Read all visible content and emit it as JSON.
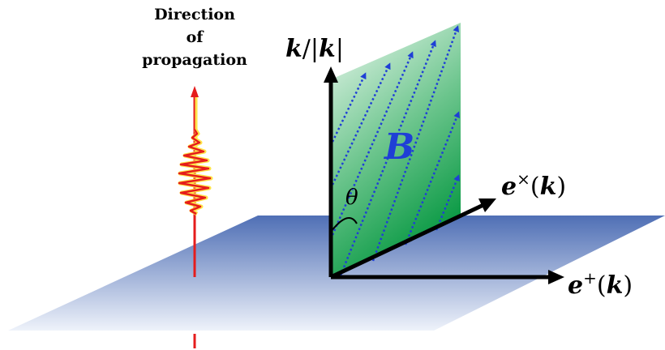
{
  "labels": {
    "direction_line1": "Direction",
    "direction_line2": "of",
    "direction_line3": "propagation",
    "k_axis_k1": "k",
    "k_axis_slash": "/|",
    "k_axis_k2": "k",
    "k_axis_bar": "|",
    "ex_e": "e",
    "ex_sup": "×",
    "ex_open": "(",
    "ex_k": "k",
    "ex_close": ")",
    "ep_e": "e",
    "ep_sup": "+",
    "ep_open": "(",
    "ep_k": "k",
    "ep_close": ")",
    "field": "B",
    "angle": "θ"
  },
  "colors": {
    "plane_top": "#4f6fb5",
    "plane_bottom": "#eef2fa",
    "field_plane_top": "#eef9f1",
    "field_plane_bottom": "#0b9a45",
    "field_lines": "#1f3fd6",
    "wave_packet": "#e51c1c",
    "wave_glow": "#ffe44a",
    "axes": "#000000",
    "field_label": "#1f3fd6"
  }
}
